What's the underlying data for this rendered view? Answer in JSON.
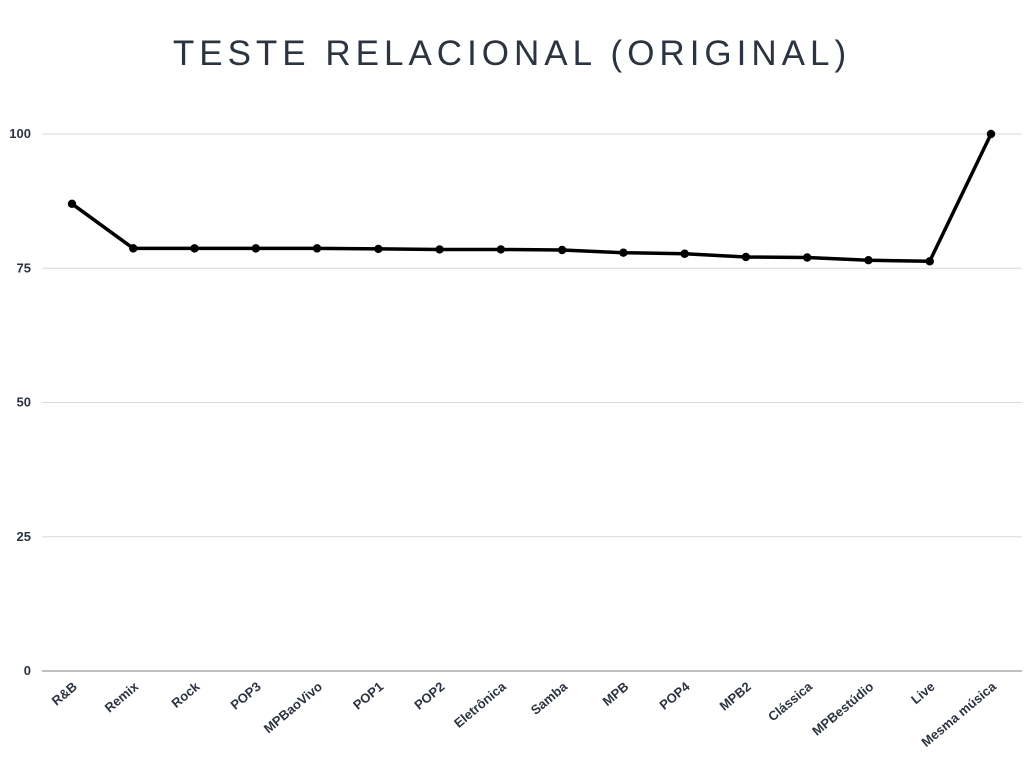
{
  "chart_data": {
    "type": "line",
    "title": "TESTE RELACIONAL (ORIGINAL)",
    "xlabel": "",
    "ylabel": "",
    "categories": [
      "R&B",
      "Remix",
      "Rock",
      "POP3",
      "MPBaoVivo",
      "POP1",
      "POP2",
      "Eletrônica",
      "Samba",
      "MPB",
      "POP4",
      "MPB2",
      "Clássica",
      "MPBestúdio",
      "Live",
      "Mesma música"
    ],
    "series": [
      {
        "values": [
          87.0,
          78.7,
          78.7,
          78.7,
          78.7,
          78.6,
          78.5,
          78.5,
          78.4,
          77.9,
          77.7,
          77.1,
          77.0,
          76.5,
          76.3,
          100.0
        ]
      }
    ],
    "ylim": [
      0,
      100
    ],
    "yticks": [
      0,
      25,
      50,
      75,
      100
    ],
    "grid": true,
    "legend": "none",
    "colors": {
      "line": "#000000",
      "grid": "#d9d9d9",
      "axis": "#999999",
      "text": "#2b3440"
    }
  }
}
